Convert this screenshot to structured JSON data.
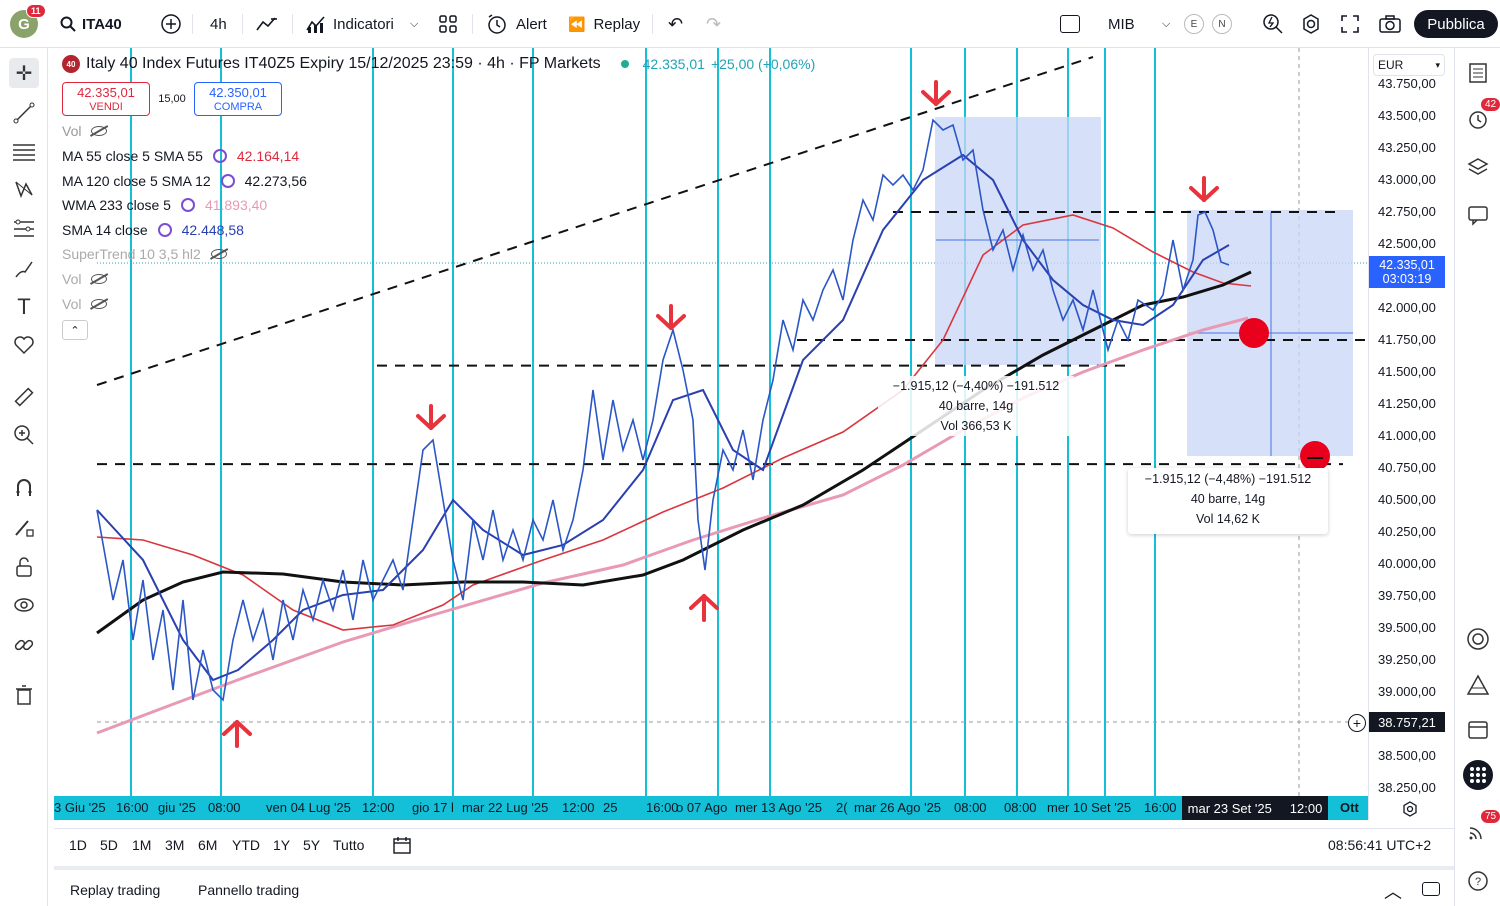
{
  "topbar": {
    "avatar_letter": "G",
    "avatar_badge": "11",
    "symbol": "ITA40",
    "interval": "4h",
    "indicators": "Indicatori",
    "alert": "Alert",
    "replay": "Replay",
    "compare_symbol": "MIB",
    "badge_e": "E",
    "badge_n": "N",
    "publish": "Pubblica"
  },
  "legend": {
    "logo": "40",
    "title": "Italy 40 Index Futures IT40Z5 Expiry 15/12/2025 23:59 · 4h · FP Markets",
    "last": "42.335,01",
    "change": "+25,00 (+0,06%)",
    "sell_price": "42.335,01",
    "sell_label": "VENDI",
    "spread": "15,00",
    "buy_price": "42.350,01",
    "buy_label": "COMPRA",
    "vol1": "Vol",
    "ind1_name": "MA 55 close 5 SMA 55",
    "ind1_value": "42.164,14",
    "ind2_name": "MA 120 close 5 SMA 12",
    "ind2_value": "42.273,56",
    "ind3_name": "WMA 233 close 5",
    "ind3_value": "41.893,40",
    "ind4_name": "SMA 14 close",
    "ind4_value": "42.448,58",
    "ind5_name": "SuperTrend 10 3,5 hl2",
    "vol2": "Vol",
    "vol3": "Vol"
  },
  "colors": {
    "price_line": "#2b56c6",
    "sma14": "#2a3fb0",
    "ma55": "#d9363e",
    "ma120": "#111111",
    "wma233": "#e89ab5",
    "vlines": "#13c0d8",
    "arrows": "#e8323c",
    "box": "#c9d6f7"
  },
  "price_axis": {
    "currency": "EUR",
    "labels": [
      "43.750,00",
      "43.500,00",
      "43.250,00",
      "43.000,00",
      "42.750,00",
      "42.500,00",
      "42.250,00",
      "42.000,00",
      "41.750,00",
      "41.500,00",
      "41.250,00",
      "41.000,00",
      "40.750,00",
      "40.500,00",
      "40.250,00",
      "40.000,00",
      "39.750,00",
      "39.500,00",
      "39.250,00",
      "39.000,00",
      "38.750,00",
      "38.500,00",
      "38.250,00"
    ],
    "current_price": "42.335,01",
    "countdown": "03:03:19",
    "crosshair_price": "38.757,21"
  },
  "time_axis": {
    "labels": [
      "3 Giu '25",
      "16:00",
      "giu '25",
      "08:00",
      "ven 04 Lug '25",
      "12:00",
      "gio 17 l",
      "mar 22 Lug '25",
      "12:00",
      "25",
      "16:00",
      "o 07 Ago",
      "mer 13 Ago '25",
      "2(",
      "mar 26 Ago '25",
      "08:00",
      "08:00",
      "mer 10 Set '25",
      "16:00"
    ],
    "crosshair_time": "mar 23 Set '25",
    "crosshair_hour": "12:00",
    "next_month": "Ott"
  },
  "annotations": {
    "range1_line1": "−1.915,12 (−4,40%) −191.512",
    "range1_line2": "40 barre, 14g",
    "range1_line3": "Vol 366,53 K",
    "range2_line1": "−1.915,12 (−4,48%) −191.512",
    "range2_line2": "40 barre, 14g",
    "range2_line3": "Vol 14,62 K"
  },
  "range_bar": {
    "ranges": [
      "1D",
      "5D",
      "1M",
      "3M",
      "6M",
      "YTD",
      "1Y",
      "5Y",
      "Tutto"
    ],
    "clock": "08:56:41 UTC+2"
  },
  "bottom_bar": {
    "tab1": "Replay trading",
    "tab2": "Pannello trading"
  },
  "right_toolbar": {
    "alerts_badge": "42",
    "news_badge": "75"
  },
  "chart_data": {
    "type": "line",
    "instrument": "Italy 40 Index Futures IT40Z5",
    "interval": "4h",
    "y_axis_range": [
      38250,
      43750
    ],
    "series": [
      {
        "name": "MA 55 close 5 SMA 55",
        "last": 42164.14
      },
      {
        "name": "MA 120 close 5 SMA 12",
        "last": 42273.56
      },
      {
        "name": "WMA 233 close 5",
        "last": 41893.4
      },
      {
        "name": "SMA 14 close",
        "last": 42448.58
      }
    ],
    "horizontal_levels": [
      42750,
      41750,
      41550,
      40780
    ],
    "last_price": 42335.01
  }
}
